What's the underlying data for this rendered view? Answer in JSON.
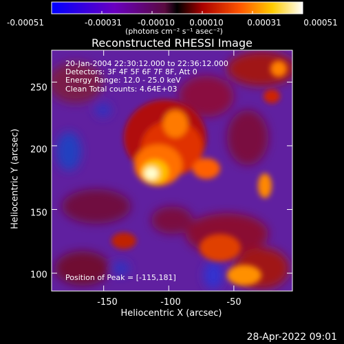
{
  "colorbar": {
    "tick_labels": [
      "-0.00051",
      "-0.00031",
      "-0.00010",
      "0.00010",
      "0.00031",
      "0.00051"
    ],
    "units": "(photons cm⁻² s⁻¹ asec⁻²)",
    "colors": [
      "#0000ff",
      "#6a00c0",
      "#7a1050",
      "#cc0000",
      "#ff6600",
      "#ffdd00",
      "#ffffff"
    ]
  },
  "title": "Reconstructed RHESSI Image",
  "info_lines": [
    "20-Jan-2004 22:30:12.000 to 22:36:12.000",
    "Detectors: 3F 4F 5F 6F 7F 8F, Att 0",
    "Energy Range: 12.0 - 25.0 keV",
    "Clean    Total counts: 4.64E+03"
  ],
  "peak_text": "Position of Peak = [-115,181]",
  "y_axis": {
    "label": "Heliocentric Y (arcsec)",
    "ticks": [
      "250",
      "200",
      "150",
      "100"
    ],
    "tick_values": [
      250,
      200,
      150,
      100
    ],
    "range": [
      86,
      275
    ]
  },
  "x_axis": {
    "label": "Heliocentric X (arcsec)",
    "ticks": [
      "-150",
      "-100",
      "-50"
    ],
    "tick_values": [
      -150,
      -100,
      -50
    ],
    "range": [
      -190,
      -5
    ]
  },
  "peak": {
    "x": -115,
    "y": 181
  },
  "timestamp": "28-Apr-2022 09:01"
}
